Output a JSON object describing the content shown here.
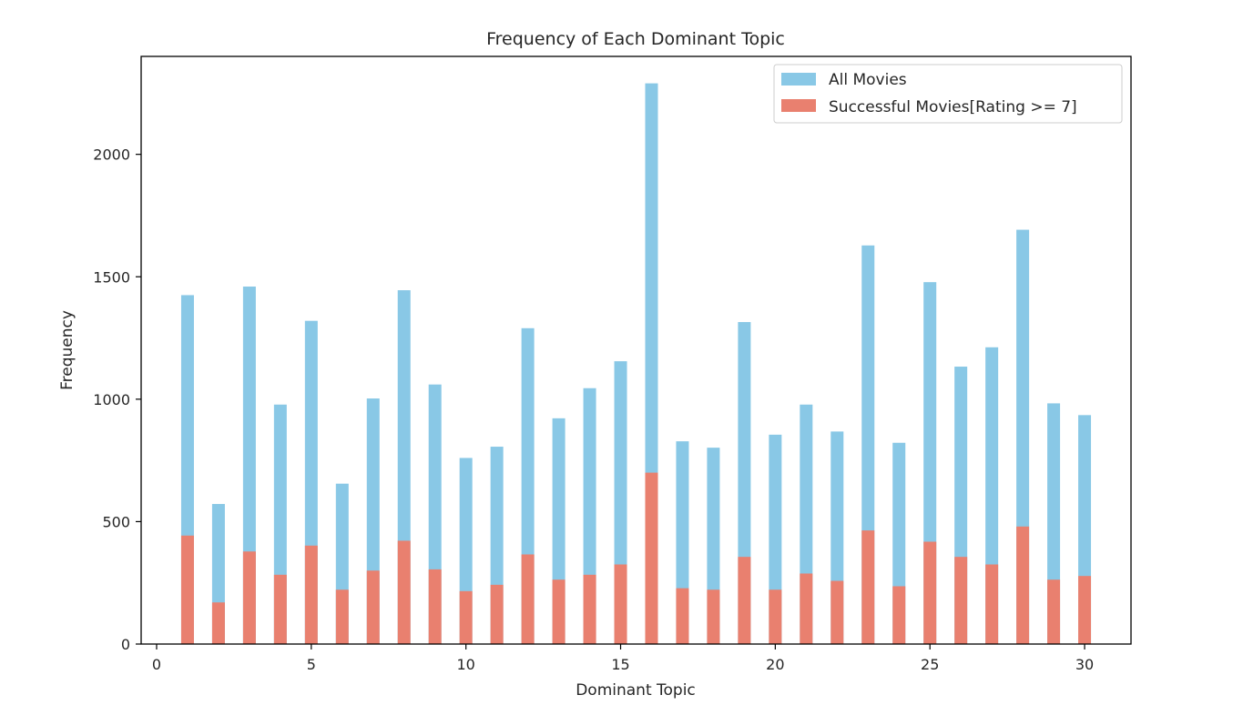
{
  "chart_data": {
    "type": "bar",
    "title": "Frequency of Each Dominant Topic",
    "xlabel": "Dominant Topic",
    "ylabel": "Frequency",
    "xlim": [
      -0.5,
      31.5
    ],
    "ylim": [
      0,
      2400
    ],
    "xticks": [
      0,
      5,
      10,
      15,
      20,
      25,
      30
    ],
    "yticks": [
      0,
      500,
      1000,
      1500,
      2000
    ],
    "x": [
      1,
      2,
      3,
      4,
      5,
      6,
      7,
      8,
      9,
      10,
      11,
      12,
      13,
      14,
      15,
      16,
      17,
      18,
      19,
      20,
      21,
      22,
      23,
      24,
      25,
      26,
      27,
      28,
      29,
      30
    ],
    "series": [
      {
        "name": "All Movies",
        "color": "#89c8e6",
        "values": [
          1425,
          572,
          1460,
          978,
          1320,
          655,
          1003,
          1445,
          1060,
          760,
          806,
          1290,
          922,
          1045,
          1155,
          2290,
          828,
          802,
          1315,
          855,
          978,
          868,
          1628,
          822,
          1478,
          1133,
          1212,
          1692,
          983,
          935
        ]
      },
      {
        "name": "Successful Movies[Rating >= 7]",
        "color": "#e9806f",
        "values": [
          443,
          170,
          378,
          283,
          402,
          222,
          300,
          422,
          305,
          216,
          242,
          366,
          263,
          283,
          325,
          700,
          228,
          222,
          356,
          222,
          288,
          258,
          464,
          236,
          418,
          356,
          325,
          480,
          263,
          278
        ]
      }
    ],
    "legend_position": "top-right",
    "grid": false
  }
}
